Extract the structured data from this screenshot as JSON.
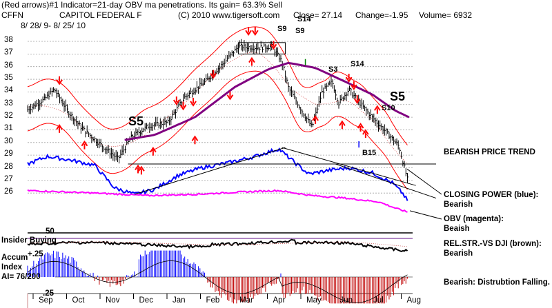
{
  "header": {
    "line1": "(Red arrows)#1 Indicator=21-day OBV ma penetrations. Its gain= 63.3% Sell",
    "symbol": "CFFN",
    "company": "CAPITOL FEDERAL F",
    "copyright": "(C) 2010 www.tigersoft.com",
    "close": "Close=  27.14",
    "change": "Change=-1.95",
    "volume": "Volume= 6932",
    "daterange": "8/ 28/ 9-  8/ 25/ 10"
  },
  "price_ticks": [
    "38",
    "37",
    "36",
    "35",
    "34",
    "33",
    "32",
    "31",
    "30",
    "29",
    "28",
    "27",
    "26"
  ],
  "months": [
    "Sep",
    "Oct",
    "Nov",
    "Dec",
    "Jan",
    "Feb",
    "Mar",
    "Apr",
    "May",
    "Jun",
    "Jul",
    "Aug"
  ],
  "signals": {
    "s5_left": "S5",
    "s5_right": "S5",
    "s9a": "S9",
    "s9b": "S9",
    "s14a": "S14",
    "s14b": "S14",
    "s3": "S3",
    "s10": "S10",
    "b15": "B15"
  },
  "lower_labels": {
    "insider_tick": "50",
    "insider": "Insider Buying",
    "accum_top": "+.25",
    "accum_title": "Accum",
    "accum_index": "Index",
    "ai": "AI= 76/200",
    "accum_bottom": ".25"
  },
  "annotations": {
    "bearish_trend": "BEARISH PRICE TREND",
    "cp_line1": "CLOSING POWER (blue):",
    "cp_line2": "Bearish",
    "obv_line1": "OBV (magenta):",
    "obv_line2": "Beaish",
    "rel_line1": "REL.STR.-VS DJI (brown):",
    "rel_line2": "Bearish",
    "dist": "Bearish: Distrubtion Falling."
  },
  "colors": {
    "price_bars": "#000000",
    "bands": "#ff0000",
    "ma_purple": "#800080",
    "closing_power": "#0000ff",
    "obv": "#ff00ff",
    "accum_pos": "#0000ff",
    "accum_neg": "#c00000",
    "grid": "#a0a0a0"
  },
  "chart_data": {
    "type": "line",
    "ylim": [
      25.5,
      38.7
    ],
    "months": [
      "Sep",
      "Oct",
      "Nov",
      "Dec",
      "Jan",
      "Feb",
      "Mar",
      "Apr",
      "May",
      "Jun",
      "Jul",
      "Aug"
    ],
    "price_keypoints": [
      {
        "t": 0.0,
        "close": 32.6
      },
      {
        "t": 0.5,
        "close": 33.4
      },
      {
        "t": 0.8,
        "close": 34.2
      },
      {
        "t": 1.2,
        "close": 32.5
      },
      {
        "t": 1.6,
        "close": 31.2
      },
      {
        "t": 2.2,
        "close": 29.8
      },
      {
        "t": 2.7,
        "close": 28.7
      },
      {
        "t": 3.1,
        "close": 30.4
      },
      {
        "t": 3.6,
        "close": 31.3
      },
      {
        "t": 4.2,
        "close": 31.6
      },
      {
        "t": 4.7,
        "close": 33.6
      },
      {
        "t": 5.3,
        "close": 34.8
      },
      {
        "t": 5.9,
        "close": 36.4
      },
      {
        "t": 6.3,
        "close": 37.6
      },
      {
        "t": 6.9,
        "close": 37.5
      },
      {
        "t": 7.3,
        "close": 37.6
      },
      {
        "t": 7.6,
        "close": 36.4
      },
      {
        "t": 7.8,
        "close": 34.3
      },
      {
        "t": 8.2,
        "close": 32.5
      },
      {
        "t": 8.5,
        "close": 31.2
      },
      {
        "t": 8.8,
        "close": 34.0
      },
      {
        "t": 9.1,
        "close": 34.8
      },
      {
        "t": 9.3,
        "close": 33.1
      },
      {
        "t": 9.6,
        "close": 34.2
      },
      {
        "t": 10.0,
        "close": 32.9
      },
      {
        "t": 10.4,
        "close": 31.7
      },
      {
        "t": 10.8,
        "close": 30.6
      },
      {
        "t": 11.1,
        "close": 29.7
      },
      {
        "t": 11.35,
        "close": 27.1
      }
    ],
    "ma_keypoints": [
      {
        "t": 2.9,
        "v": 30.2
      },
      {
        "t": 3.8,
        "v": 30.6
      },
      {
        "t": 5.0,
        "v": 32.0
      },
      {
        "t": 6.2,
        "v": 34.4
      },
      {
        "t": 7.2,
        "v": 35.8
      },
      {
        "t": 7.8,
        "v": 36.3
      },
      {
        "t": 8.6,
        "v": 35.9
      },
      {
        "t": 9.5,
        "v": 34.8
      },
      {
        "t": 10.3,
        "v": 33.8
      },
      {
        "t": 11.0,
        "v": 32.5
      },
      {
        "t": 11.4,
        "v": 32.0
      }
    ],
    "closing_power_keypoints": [
      {
        "t": 0.0,
        "v": 28.3
      },
      {
        "t": 0.6,
        "v": 28.9
      },
      {
        "t": 1.3,
        "v": 28.6
      },
      {
        "t": 2.0,
        "v": 28.2
      },
      {
        "t": 2.6,
        "v": 26.4
      },
      {
        "t": 3.2,
        "v": 25.9
      },
      {
        "t": 3.8,
        "v": 26.3
      },
      {
        "t": 4.5,
        "v": 27.4
      },
      {
        "t": 5.2,
        "v": 28.0
      },
      {
        "t": 6.0,
        "v": 28.4
      },
      {
        "t": 6.8,
        "v": 28.9
      },
      {
        "t": 7.5,
        "v": 29.5
      },
      {
        "t": 7.9,
        "v": 28.6
      },
      {
        "t": 8.4,
        "v": 27.5
      },
      {
        "t": 9.0,
        "v": 27.8
      },
      {
        "t": 9.6,
        "v": 28.0
      },
      {
        "t": 10.3,
        "v": 27.6
      },
      {
        "t": 10.9,
        "v": 26.8
      },
      {
        "t": 11.2,
        "v": 26.0
      },
      {
        "t": 11.35,
        "v": 25.4
      }
    ],
    "obv_keypoints": [
      {
        "t": 0.0,
        "v": 26.2
      },
      {
        "t": 1.0,
        "v": 26.1
      },
      {
        "t": 2.0,
        "v": 26.0
      },
      {
        "t": 2.8,
        "v": 25.9
      },
      {
        "t": 3.6,
        "v": 25.8
      },
      {
        "t": 5.0,
        "v": 25.9
      },
      {
        "t": 6.5,
        "v": 26.1
      },
      {
        "t": 7.5,
        "v": 26.2
      },
      {
        "t": 8.5,
        "v": 25.8
      },
      {
        "t": 9.5,
        "v": 25.6
      },
      {
        "t": 10.5,
        "v": 25.3
      },
      {
        "t": 11.0,
        "v": 24.8
      },
      {
        "t": 11.35,
        "v": 24.5
      }
    ]
  }
}
